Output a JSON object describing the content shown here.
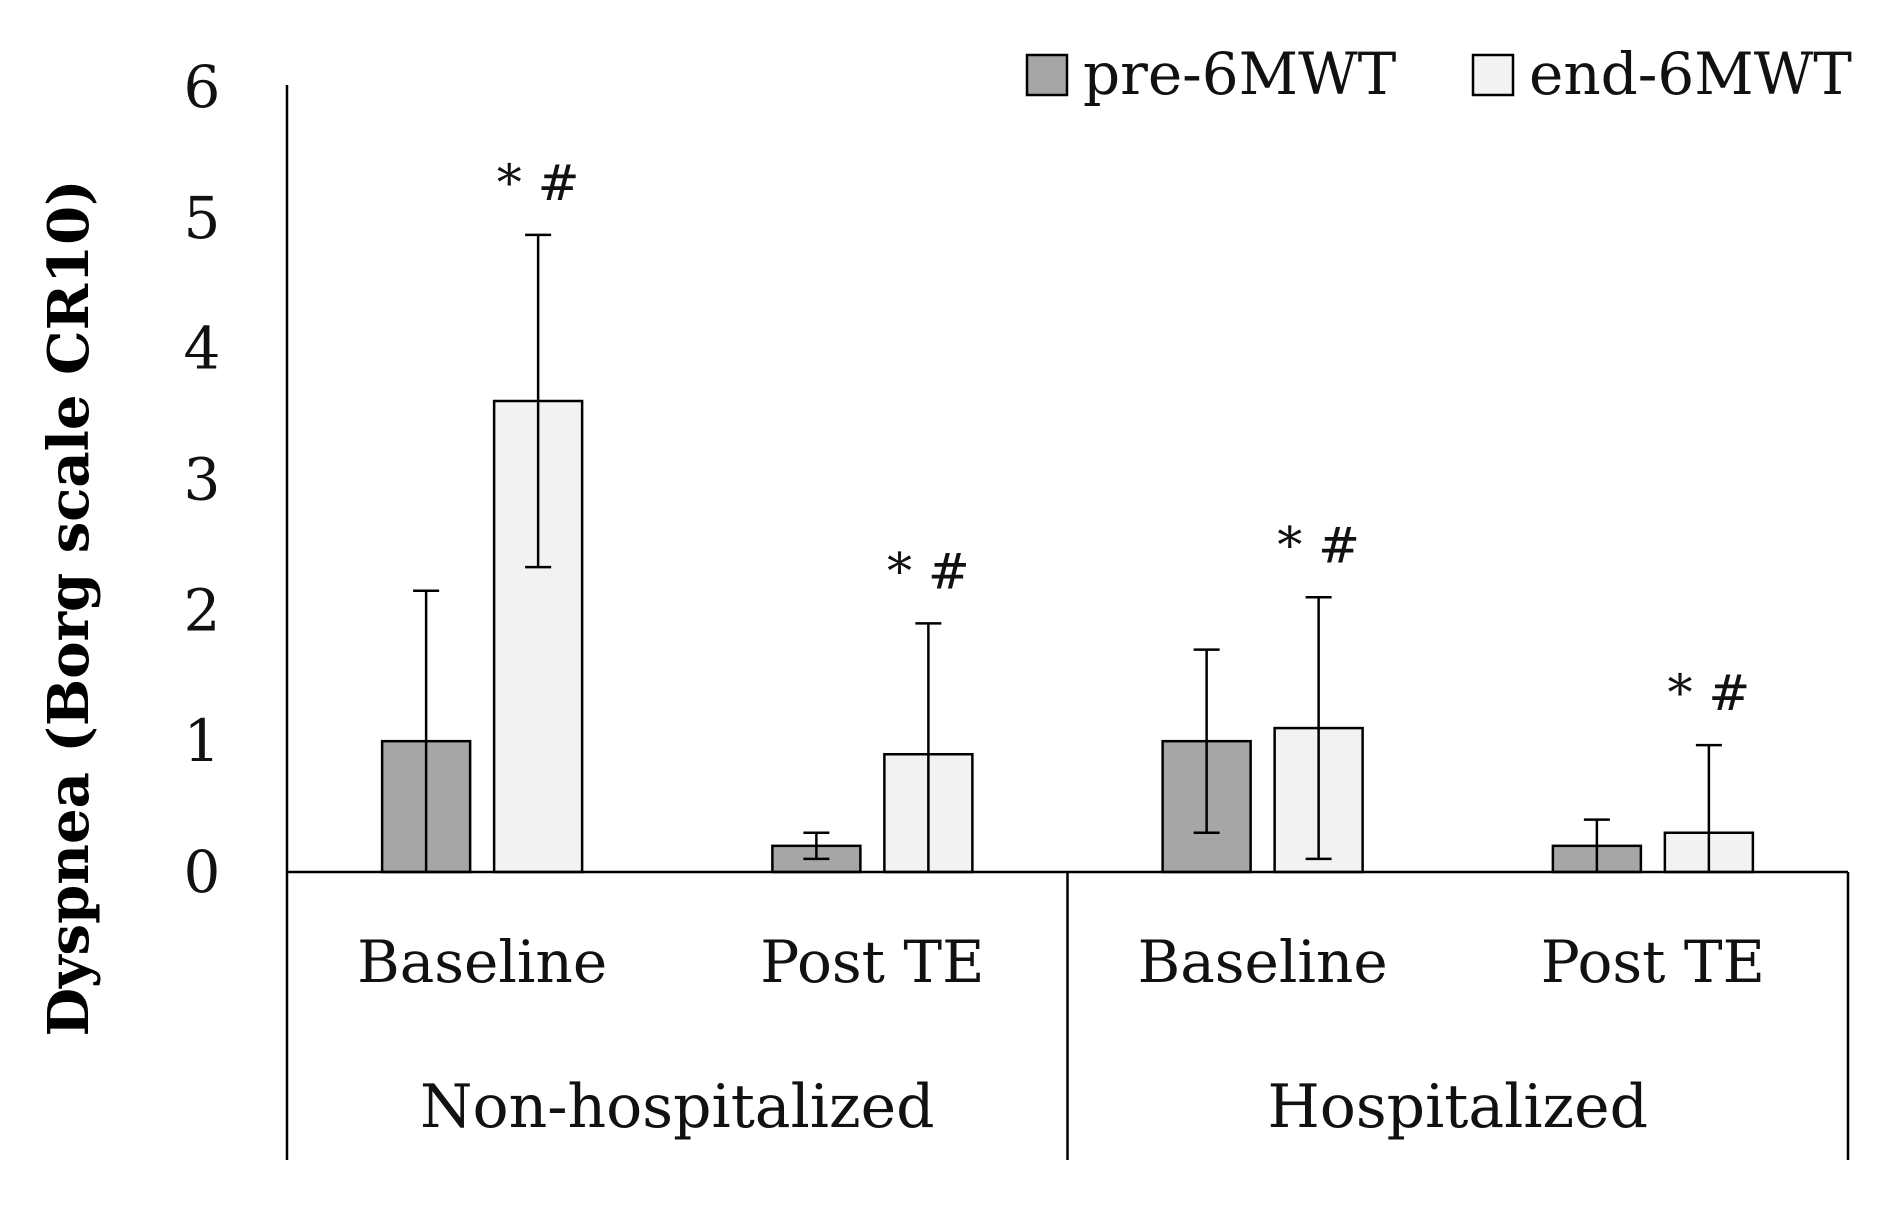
{
  "chart_data": {
    "type": "bar",
    "title": "",
    "xlabel": "",
    "ylabel": "Dyspnea (Borg scale CR10)",
    "ylim": [
      0,
      6
    ],
    "yticks": [
      "0",
      "1",
      "2",
      "3",
      "4",
      "5",
      "6"
    ],
    "groups": [
      {
        "label": "Non-hospitalized",
        "categories": [
          "Baseline",
          "Post TE"
        ]
      },
      {
        "label": "Hospitalized",
        "categories": [
          "Baseline",
          "Post TE"
        ]
      }
    ],
    "categories": [
      "Baseline",
      "Post TE",
      "Baseline",
      "Post TE"
    ],
    "series": [
      {
        "name": "pre-6MWT",
        "color": "#a6a6a6",
        "values": [
          1.0,
          0.2,
          1.0,
          0.2
        ],
        "error": [
          1.15,
          0.1,
          0.7,
          0.2
        ]
      },
      {
        "name": "end-6MWT",
        "color": "#f2f2f2",
        "values": [
          3.6,
          0.9,
          1.1,
          0.3
        ],
        "error": [
          1.27,
          1.0,
          1.0,
          0.67
        ]
      }
    ],
    "annotations": [
      "* #",
      "* #",
      "* #",
      "* #"
    ],
    "legend_position": "top-right",
    "grid": false
  }
}
